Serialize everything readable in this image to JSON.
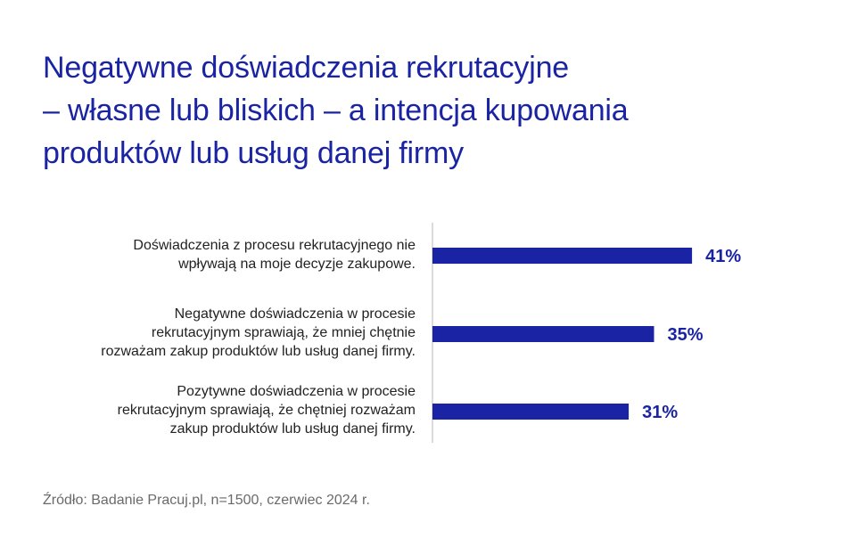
{
  "title": {
    "lines": [
      "Negatywne doświadczenia rekrutacyjne",
      "– własne lub bliskich – a intencja kupowania",
      "produktów lub usług danej firmy"
    ]
  },
  "colors": {
    "accent": "#1a23a3",
    "axis": "#cfcfcf",
    "label": "#222222",
    "source": "#6a6a6a"
  },
  "chart_data": {
    "type": "bar",
    "orientation": "horizontal",
    "categories": [
      [
        "Doświadczenia z procesu rekrutacyjnego nie",
        "wpływają na moje decyzje zakupowe."
      ],
      [
        "Negatywne doświadczenia w procesie",
        "rekrutacyjnym sprawiają, że mniej chętnie",
        "rozważam zakup produktów lub usług danej firmy."
      ],
      [
        "Pozytywne doświadczenia w procesie",
        "rekrutacyjnym sprawiają, że chętniej rozważam",
        "zakup produktów  lub usług danej firmy."
      ]
    ],
    "values": [
      41,
      35,
      31
    ],
    "value_labels": [
      "41%",
      "35%",
      "31%"
    ],
    "xlim": [
      0,
      100
    ],
    "grid": false
  },
  "source": "Źródło: Badanie Pracuj.pl, n=1500, czerwiec 2024 r."
}
